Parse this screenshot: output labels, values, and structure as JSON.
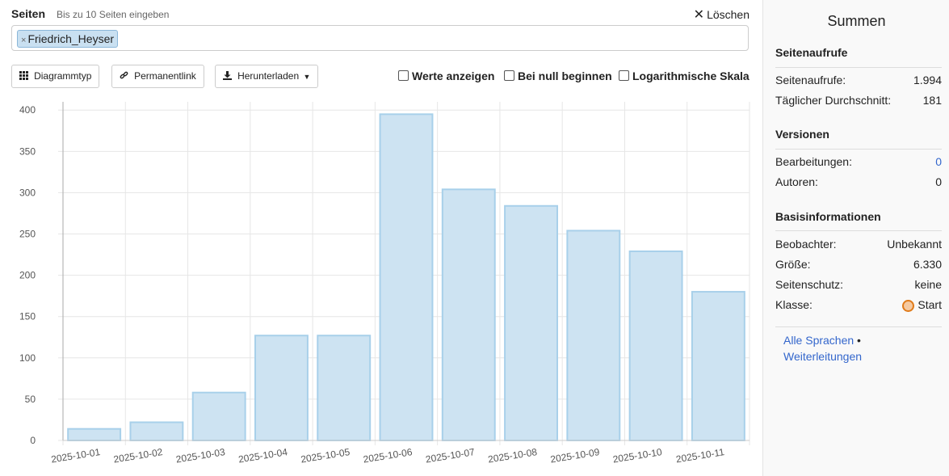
{
  "pages": {
    "label": "Seiten",
    "hint": "Bis zu 10 Seiten eingeben",
    "clear_label": "Löschen",
    "chips": [
      "Friedrich_Heyser"
    ]
  },
  "toolbar": {
    "chart_type": "Diagrammtyp",
    "permalink": "Permanentlink",
    "download": "Herunterladen",
    "options": [
      "Werte anzeigen",
      "Bei null beginnen",
      "Logarithmische Skala"
    ]
  },
  "chart_data": {
    "type": "bar",
    "categories": [
      "2025-10-01",
      "2025-10-02",
      "2025-10-03",
      "2025-10-04",
      "2025-10-05",
      "2025-10-06",
      "2025-10-07",
      "2025-10-08",
      "2025-10-09",
      "2025-10-10",
      "2025-10-11"
    ],
    "series": [
      {
        "name": "Friedrich_Heyser",
        "values": [
          14,
          22,
          58,
          127,
          127,
          395,
          304,
          284,
          254,
          229,
          180
        ]
      }
    ],
    "yticks": [
      0,
      50,
      100,
      150,
      200,
      250,
      300,
      350,
      400
    ],
    "ylim": [
      0,
      410
    ],
    "grid": true,
    "bar_fill": "#cde3f2",
    "bar_stroke": "#a8d0ea"
  },
  "sidebar": {
    "title": "Summen",
    "sections": [
      {
        "heading": "Seitenaufrufe",
        "rows": [
          {
            "label": "Seitenaufrufe:",
            "value": "1.994"
          },
          {
            "label": "Täglicher Durchschnitt:",
            "value": "181"
          }
        ]
      },
      {
        "heading": "Versionen",
        "rows": [
          {
            "label": "Bearbeitungen:",
            "value": "0"
          },
          {
            "label": "Autoren:",
            "value": "0"
          }
        ]
      },
      {
        "heading": "Basisinformationen",
        "rows": [
          {
            "label": "Beobachter:",
            "value": "Unbekannt"
          },
          {
            "label": "Größe:",
            "value": "6.330"
          },
          {
            "label": "Seitenschutz:",
            "value": "keine"
          },
          {
            "label": "Klasse:",
            "value": "Start"
          }
        ]
      }
    ],
    "links": [
      "Alle Sprachen",
      "Weiterleitungen"
    ],
    "link_separator": "•"
  },
  "colors": {
    "link": "#3366cc",
    "class_badge": "#e07b1a"
  }
}
